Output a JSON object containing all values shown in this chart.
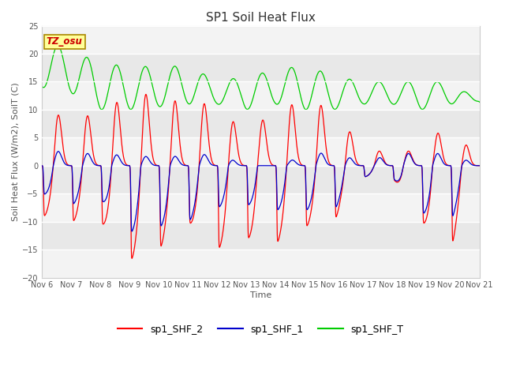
{
  "title": "SP1 Soil Heat Flux",
  "xlabel": "Time",
  "ylabel": "Soil Heat Flux (W/m2), SoilT (C)",
  "xlim_start": 0,
  "xlim_end": 15,
  "ylim": [
    -20,
    25
  ],
  "yticks": [
    -20,
    -15,
    -10,
    -5,
    0,
    5,
    10,
    15,
    20,
    25
  ],
  "xtick_labels": [
    "Nov 6",
    "Nov 7",
    "Nov 8",
    "Nov 9",
    "Nov 10",
    "Nov 11",
    "Nov 12",
    "Nov 13",
    "Nov 14",
    "Nov 15",
    "Nov 16",
    "Nov 17",
    "Nov 18",
    "Nov 19",
    "Nov 20",
    "Nov 21"
  ],
  "color_red": "#FF0000",
  "color_blue": "#0000CC",
  "color_green": "#00CC00",
  "legend_labels": [
    "sp1_SHF_2",
    "sp1_SHF_1",
    "sp1_SHF_T"
  ],
  "tz_label": "TZ_osu",
  "axes_facecolor": "#E8E8E8",
  "grid_color": "#FFFFFF",
  "title_fontsize": 11,
  "label_fontsize": 8,
  "tick_fontsize": 7,
  "legend_fontsize": 9
}
